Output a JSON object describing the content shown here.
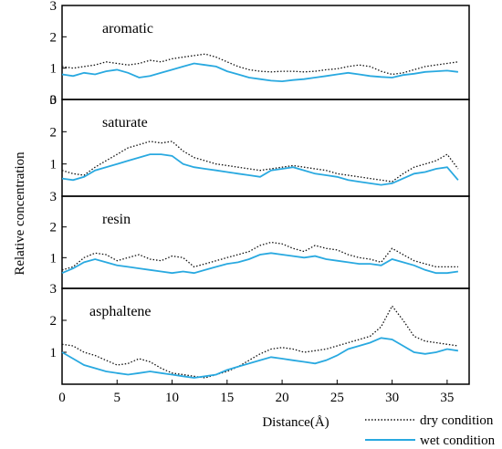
{
  "chart_data": {
    "type": "line",
    "title": "",
    "xlabel": "Distance(Å)",
    "ylabel": "Relative concentration",
    "xlim": [
      0,
      37
    ],
    "ylim": [
      0,
      3
    ],
    "x_ticks": [
      0,
      5,
      10,
      15,
      20,
      25,
      30,
      35
    ],
    "y_ticks": [
      0,
      1,
      2,
      3
    ],
    "grid": false,
    "legend_position": "bottom-right",
    "legend": [
      {
        "name": "dry condition",
        "color": "#111111",
        "style": "dotted"
      },
      {
        "name": "wet condition",
        "color": "#29a9e0",
        "style": "solid"
      }
    ],
    "x": [
      0,
      1,
      2,
      3,
      4,
      5,
      6,
      7,
      8,
      9,
      10,
      11,
      12,
      13,
      14,
      15,
      16,
      17,
      18,
      19,
      20,
      21,
      22,
      23,
      24,
      25,
      26,
      27,
      28,
      29,
      30,
      31,
      32,
      33,
      34,
      35,
      36
    ],
    "panels": [
      {
        "label": "aromatic",
        "series": [
          {
            "name": "dry condition",
            "values": [
              1.05,
              1.0,
              1.05,
              1.1,
              1.2,
              1.15,
              1.1,
              1.15,
              1.25,
              1.2,
              1.3,
              1.35,
              1.4,
              1.45,
              1.35,
              1.2,
              1.05,
              0.95,
              0.9,
              0.88,
              0.9,
              0.9,
              0.88,
              0.9,
              0.95,
              0.98,
              1.05,
              1.1,
              1.05,
              0.9,
              0.8,
              0.85,
              0.95,
              1.05,
              1.1,
              1.15,
              1.2
            ]
          },
          {
            "name": "wet condition",
            "values": [
              0.8,
              0.75,
              0.85,
              0.8,
              0.9,
              0.95,
              0.85,
              0.7,
              0.75,
              0.85,
              0.95,
              1.05,
              1.15,
              1.1,
              1.05,
              0.9,
              0.8,
              0.7,
              0.65,
              0.6,
              0.58,
              0.62,
              0.65,
              0.7,
              0.75,
              0.8,
              0.85,
              0.8,
              0.75,
              0.72,
              0.7,
              0.78,
              0.82,
              0.88,
              0.9,
              0.92,
              0.88
            ]
          }
        ]
      },
      {
        "label": "saturate",
        "series": [
          {
            "name": "dry condition",
            "values": [
              0.8,
              0.7,
              0.65,
              0.9,
              1.1,
              1.3,
              1.5,
              1.6,
              1.7,
              1.65,
              1.7,
              1.4,
              1.2,
              1.1,
              1.0,
              0.95,
              0.9,
              0.85,
              0.8,
              0.85,
              0.9,
              0.95,
              0.9,
              0.85,
              0.8,
              0.7,
              0.65,
              0.6,
              0.55,
              0.5,
              0.45,
              0.7,
              0.9,
              1.0,
              1.1,
              1.3,
              0.85
            ]
          },
          {
            "name": "wet condition",
            "values": [
              0.55,
              0.5,
              0.6,
              0.8,
              0.9,
              1.0,
              1.1,
              1.2,
              1.3,
              1.3,
              1.25,
              1.0,
              0.9,
              0.85,
              0.8,
              0.75,
              0.7,
              0.65,
              0.6,
              0.8,
              0.85,
              0.9,
              0.8,
              0.7,
              0.65,
              0.6,
              0.5,
              0.45,
              0.4,
              0.35,
              0.4,
              0.55,
              0.7,
              0.75,
              0.85,
              0.9,
              0.5
            ]
          }
        ]
      },
      {
        "label": "resin",
        "series": [
          {
            "name": "dry condition",
            "values": [
              0.6,
              0.7,
              1.0,
              1.15,
              1.1,
              0.9,
              1.0,
              1.1,
              0.95,
              0.9,
              1.05,
              1.0,
              0.7,
              0.8,
              0.9,
              1.0,
              1.1,
              1.2,
              1.4,
              1.5,
              1.45,
              1.3,
              1.2,
              1.4,
              1.3,
              1.25,
              1.1,
              1.0,
              0.95,
              0.85,
              1.3,
              1.1,
              0.9,
              0.8,
              0.7,
              0.7,
              0.7
            ]
          },
          {
            "name": "wet condition",
            "values": [
              0.5,
              0.65,
              0.85,
              0.95,
              0.85,
              0.75,
              0.7,
              0.65,
              0.6,
              0.55,
              0.5,
              0.55,
              0.5,
              0.6,
              0.7,
              0.8,
              0.85,
              0.95,
              1.1,
              1.15,
              1.1,
              1.05,
              1.0,
              1.05,
              0.95,
              0.9,
              0.85,
              0.8,
              0.8,
              0.75,
              0.95,
              0.85,
              0.75,
              0.6,
              0.5,
              0.5,
              0.55
            ]
          }
        ]
      },
      {
        "label": "asphaltene",
        "series": [
          {
            "name": "dry condition",
            "values": [
              1.25,
              1.2,
              1.0,
              0.9,
              0.75,
              0.6,
              0.65,
              0.8,
              0.7,
              0.5,
              0.35,
              0.3,
              0.25,
              0.2,
              0.3,
              0.4,
              0.55,
              0.75,
              0.95,
              1.1,
              1.15,
              1.1,
              1.0,
              1.05,
              1.1,
              1.2,
              1.3,
              1.4,
              1.5,
              1.8,
              2.45,
              2.0,
              1.5,
              1.35,
              1.3,
              1.25,
              1.2
            ]
          },
          {
            "name": "wet condition",
            "values": [
              1.0,
              0.8,
              0.6,
              0.5,
              0.4,
              0.35,
              0.3,
              0.35,
              0.4,
              0.35,
              0.3,
              0.25,
              0.2,
              0.25,
              0.3,
              0.45,
              0.55,
              0.65,
              0.75,
              0.85,
              0.8,
              0.75,
              0.7,
              0.65,
              0.75,
              0.9,
              1.1,
              1.2,
              1.3,
              1.45,
              1.4,
              1.2,
              1.0,
              0.95,
              1.0,
              1.1,
              1.05
            ]
          }
        ]
      }
    ]
  }
}
